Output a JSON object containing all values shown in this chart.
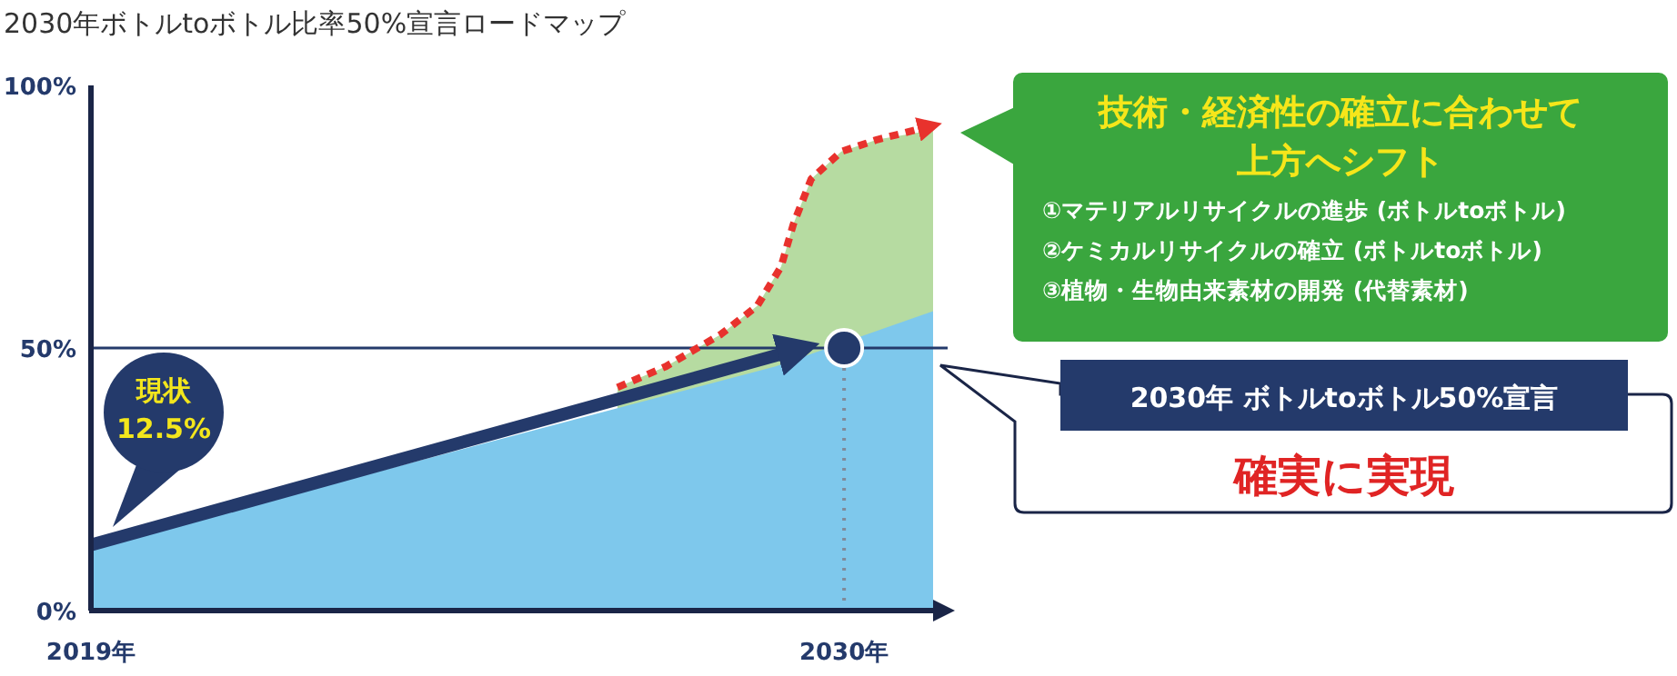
{
  "chart_data": {
    "type": "area",
    "title": "2030年ボトルtoボトル比率50%宣言ロードマップ",
    "xlim": [
      2019,
      2031.3
    ],
    "ylim": [
      0,
      100
    ],
    "xticks": [
      {
        "value": 2019,
        "label": "2019年"
      },
      {
        "value": 2030,
        "label": "2030年"
      }
    ],
    "yticks": [
      {
        "value": 0,
        "label": "0%"
      },
      {
        "value": 50,
        "label": "50%"
      },
      {
        "value": 100,
        "label": "100%"
      }
    ],
    "grid": false,
    "series": [
      {
        "color": "#b6dba1",
        "x": [
          2026.69,
          2027.4,
          2028.2,
          2028.73,
          2029.08,
          2029.26,
          2029.52,
          2029.96,
          2030.49,
          2031.3
        ],
        "values": [
          42.5,
          46.5,
          52.6,
          58,
          65.5,
          73.6,
          82.2,
          87.4,
          89.7,
          91.5
        ]
      },
      {
        "color": "#7ec8ec",
        "x": [
          2019,
          2029,
          2031.3
        ],
        "values": [
          12,
          46.5,
          57
        ]
      },
      {
        "type": "line",
        "color": "#e8322d",
        "line_style": "dashed",
        "x": [
          2026.69,
          2027.4,
          2028.2,
          2028.73,
          2029.08,
          2029.26,
          2029.52,
          2029.96,
          2030.49,
          2031.29
        ],
        "values": [
          42.5,
          46.5,
          52.6,
          58,
          65.5,
          73.6,
          82.2,
          87.4,
          89.7,
          92.3
        ]
      },
      {
        "type": "line",
        "color": "#243a6b",
        "line_style": "solid",
        "x": [
          2019,
          2029.4
        ],
        "values": [
          12.5,
          50
        ]
      },
      {
        "type": "line",
        "color": "#7f8a9a",
        "line_style": "dotted",
        "x": [
          2030,
          2030
        ],
        "values": [
          0,
          50
        ]
      },
      {
        "type": "scatter",
        "color": "#243a6b",
        "marker": "circle",
        "x": [
          2030
        ],
        "values": [
          50
        ]
      }
    ],
    "ref_lines": [
      {
        "axis": "y",
        "value": 50,
        "color": "#243a6b"
      }
    ],
    "annotations": [
      "現状",
      "12.5%",
      "技術・経済性の確立に合わせて",
      "上方へシフト",
      "①マテリアルリサイクルの進歩 (ボトルtoボトル)",
      "②ケミカルリサイクルの確立 (ボトルtoボトル)",
      "③植物・生物由来素材の開発 (代替素材)",
      "2030年 ボトルtoボトル50%宣言",
      "確実に実現"
    ]
  }
}
